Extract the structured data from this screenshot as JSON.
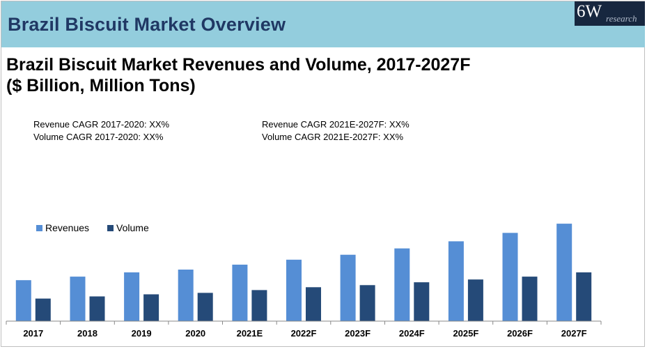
{
  "header": {
    "title": "Brazil Biscuit Market Overview"
  },
  "logo": {
    "main": "6W",
    "sub": "research"
  },
  "cagr": {
    "left": [
      "Revenue CAGR 2017-2020: XX%",
      "Volume CAGR 2017-2020: XX%"
    ],
    "right": [
      "Revenue CAGR 2021E-2027F: XX%",
      "Volume CAGR 2021E-2027F: XX%"
    ]
  },
  "colors": {
    "revenues": "#558ed5",
    "volume": "#254a78",
    "header": "#93cddd",
    "header_text": "#203864"
  },
  "chart_data": {
    "type": "bar",
    "title": "Brazil Biscuit Market Revenues and Volume, 2017-2027F",
    "subtitle": "($ Billion, Million Tons)",
    "categories": [
      "2017",
      "2018",
      "2019",
      "2020",
      "2021E",
      "2022F",
      "2023F",
      "2024F",
      "2025F",
      "2026F",
      "2027F"
    ],
    "series": [
      {
        "name": "Revenues",
        "values": [
          5.8,
          6.3,
          6.9,
          7.3,
          8.0,
          8.7,
          9.4,
          10.3,
          11.3,
          12.5,
          13.8
        ]
      },
      {
        "name": "Volume",
        "values": [
          3.2,
          3.5,
          3.8,
          4.0,
          4.4,
          4.8,
          5.1,
          5.5,
          5.9,
          6.3,
          6.9
        ]
      }
    ],
    "xlabel": "",
    "ylabel": "",
    "ylim": [
      0,
      14.5
    ],
    "grid": false,
    "legend": "top-left",
    "axis_labels_shown": false
  }
}
